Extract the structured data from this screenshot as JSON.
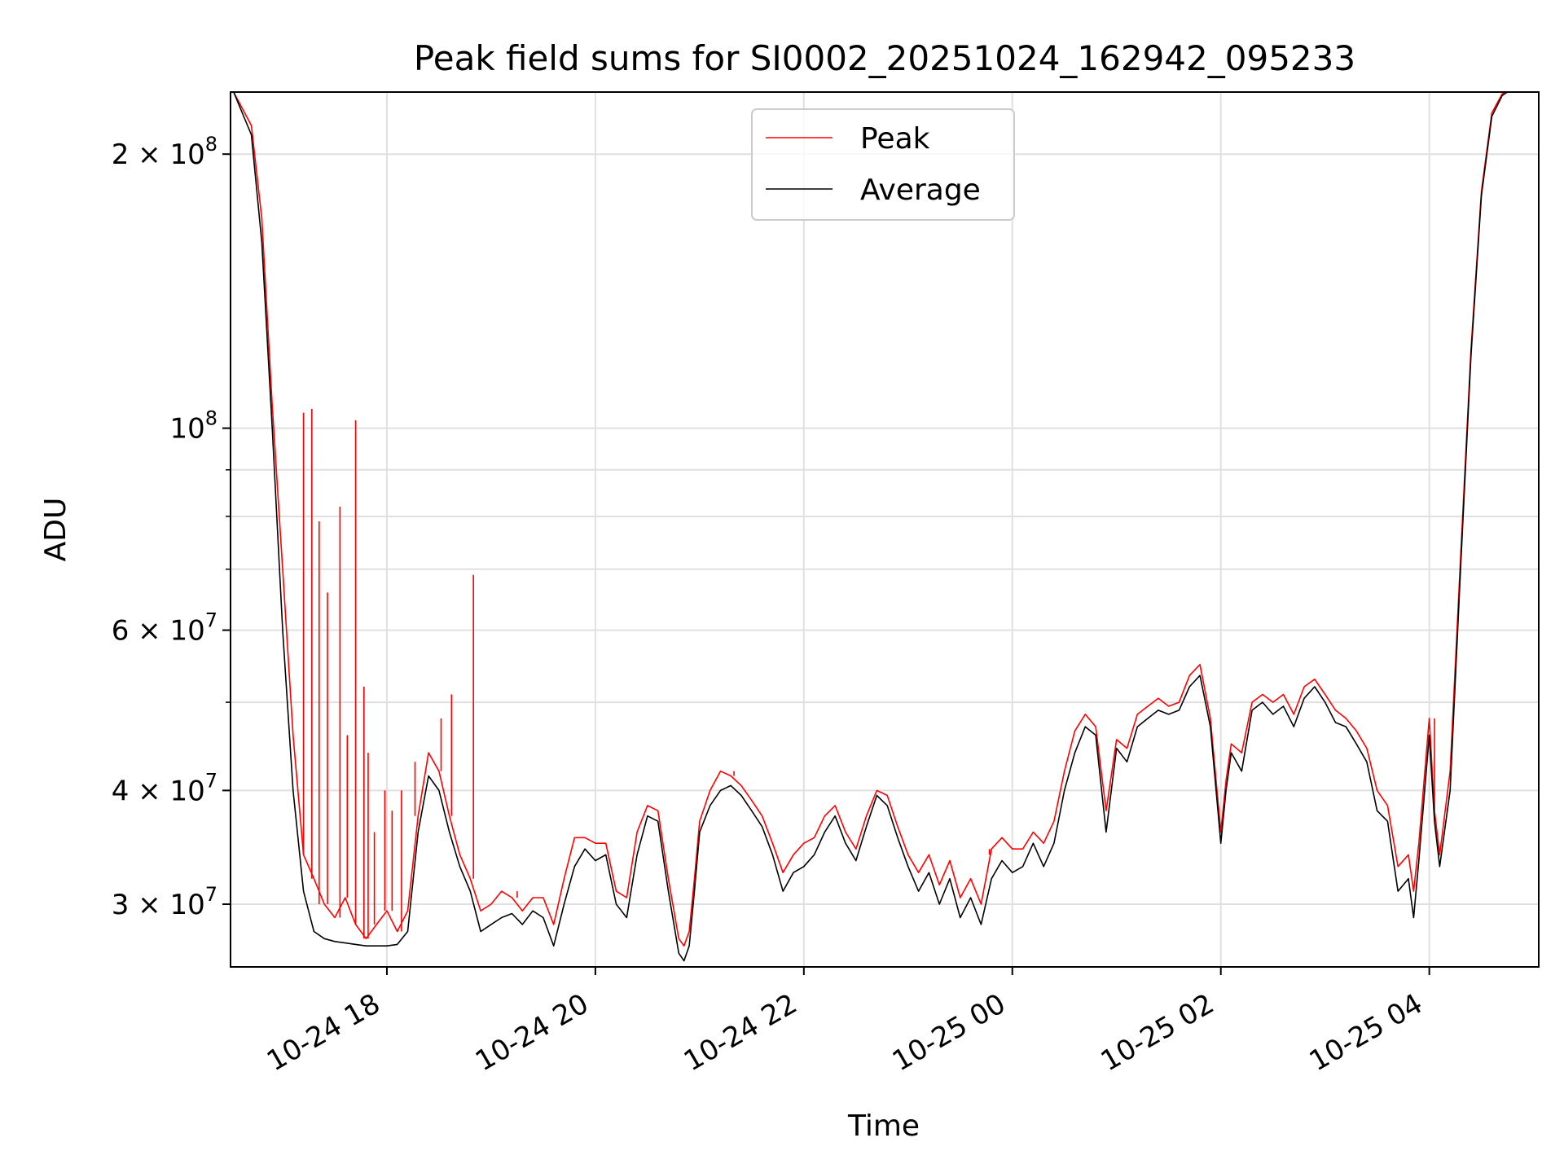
{
  "chart_data": {
    "type": "line",
    "title": "Peak field sums for SI0002_20251024_162942_095233",
    "xlabel": "Time",
    "ylabel": "ADU",
    "yscale": "log",
    "ylim": [
      25600000,
      234000000
    ],
    "xlim_hours": [
      16.5,
      29.05
    ],
    "x_unit": "hours since 2025-10-24 00:00",
    "grid": true,
    "legend_location": "upper center",
    "x_ticks": [
      {
        "value": 18,
        "label": "10-24 18"
      },
      {
        "value": 20,
        "label": "10-24 20"
      },
      {
        "value": 22,
        "label": "10-24 22"
      },
      {
        "value": 24,
        "label": "10-25 00"
      },
      {
        "value": 26,
        "label": "10-25 02"
      },
      {
        "value": 28,
        "label": "10-25 04"
      }
    ],
    "y_major_ticks": [
      {
        "value": 30000000,
        "mantissa": "3",
        "exponent": "7"
      },
      {
        "value": 40000000,
        "mantissa": "4",
        "exponent": "7"
      },
      {
        "value": 60000000,
        "mantissa": "6",
        "exponent": "7"
      },
      {
        "value": 100000000,
        "mantissa": "",
        "exponent": "8"
      },
      {
        "value": 200000000,
        "mantissa": "2",
        "exponent": "8"
      }
    ],
    "y_minor_ticks": [
      50000000,
      70000000,
      80000000,
      90000000
    ],
    "times_symbol": "×",
    "base_label": "10",
    "series": [
      {
        "name": "Average",
        "color": "#000000",
        "x": [
          16.53,
          16.7,
          16.8,
          16.9,
          17.0,
          17.1,
          17.2,
          17.3,
          17.4,
          17.5,
          17.6,
          17.7,
          17.8,
          17.9,
          18.0,
          18.1,
          18.2,
          18.3,
          18.4,
          18.5,
          18.6,
          18.7,
          18.8,
          18.9,
          19.0,
          19.1,
          19.2,
          19.3,
          19.4,
          19.5,
          19.6,
          19.7,
          19.8,
          19.9,
          20.0,
          20.1,
          20.2,
          20.3,
          20.4,
          20.5,
          20.6,
          20.7,
          20.8,
          20.85,
          20.9,
          20.95,
          21.0,
          21.1,
          21.2,
          21.3,
          21.4,
          21.5,
          21.6,
          21.7,
          21.8,
          21.9,
          22.0,
          22.1,
          22.2,
          22.3,
          22.4,
          22.5,
          22.6,
          22.7,
          22.8,
          22.9,
          23.0,
          23.1,
          23.2,
          23.3,
          23.4,
          23.5,
          23.6,
          23.7,
          23.8,
          23.9,
          24.0,
          24.1,
          24.2,
          24.3,
          24.4,
          24.5,
          24.6,
          24.7,
          24.8,
          24.9,
          25.0,
          25.1,
          25.2,
          25.3,
          25.4,
          25.5,
          25.6,
          25.7,
          25.8,
          25.9,
          26.0,
          26.05,
          26.1,
          26.2,
          26.3,
          26.4,
          26.5,
          26.6,
          26.7,
          26.8,
          26.9,
          27.0,
          27.1,
          27.2,
          27.3,
          27.4,
          27.5,
          27.6,
          27.7,
          27.8,
          27.85,
          27.9,
          28.0,
          28.05,
          28.1,
          28.2,
          28.3,
          28.4,
          28.5,
          28.6,
          28.7,
          28.75,
          28.8,
          28.9,
          29.0,
          29.05
        ],
        "y": [
          234000000,
          210000000,
          160000000,
          100000000,
          60000000,
          40000000,
          31000000,
          28000000,
          27500000,
          27300000,
          27200000,
          27100000,
          27000000,
          27000000,
          27000000,
          27100000,
          28000000,
          36000000,
          41500000,
          40000000,
          36000000,
          33000000,
          31000000,
          28000000,
          28500000,
          29000000,
          29300000,
          28500000,
          29500000,
          29000000,
          27000000,
          30000000,
          33000000,
          34500000,
          33500000,
          34000000,
          30000000,
          29000000,
          34000000,
          37500000,
          37000000,
          31000000,
          26500000,
          26000000,
          27000000,
          31000000,
          36000000,
          38500000,
          40000000,
          40500000,
          39500000,
          38000000,
          36500000,
          34000000,
          31000000,
          32500000,
          33000000,
          34000000,
          36000000,
          37500000,
          35000000,
          33500000,
          36500000,
          39500000,
          38500000,
          35500000,
          33000000,
          31000000,
          32500000,
          30000000,
          32000000,
          29000000,
          30500000,
          28500000,
          32000000,
          33500000,
          32500000,
          33000000,
          35000000,
          33000000,
          35000000,
          40000000,
          44000000,
          47000000,
          46000000,
          36000000,
          44500000,
          43000000,
          47000000,
          48000000,
          49000000,
          48500000,
          49000000,
          52000000,
          53500000,
          47000000,
          35000000,
          40000000,
          44000000,
          42000000,
          49000000,
          50000000,
          48500000,
          49500000,
          47000000,
          50500000,
          52000000,
          50000000,
          47500000,
          47000000,
          45000000,
          43000000,
          38000000,
          37000000,
          31000000,
          32000000,
          29000000,
          33500000,
          46000000,
          37000000,
          33000000,
          40000000,
          70000000,
          120000000,
          180000000,
          220000000,
          232000000,
          234000000,
          234000000,
          234000000,
          234000000,
          234000000
        ]
      },
      {
        "name": "Peak",
        "color": "#ff0000",
        "x": [
          16.53,
          16.7,
          16.8,
          16.9,
          17.0,
          17.1,
          17.2,
          17.3,
          17.4,
          17.5,
          17.6,
          17.7,
          17.8,
          17.9,
          18.0,
          18.1,
          18.2,
          18.3,
          18.4,
          18.5,
          18.6,
          18.7,
          18.8,
          18.9,
          19.0,
          19.1,
          19.2,
          19.3,
          19.4,
          19.5,
          19.6,
          19.7,
          19.8,
          19.9,
          20.0,
          20.1,
          20.2,
          20.3,
          20.4,
          20.5,
          20.6,
          20.7,
          20.8,
          20.85,
          20.9,
          20.95,
          21.0,
          21.1,
          21.2,
          21.3,
          21.4,
          21.5,
          21.6,
          21.7,
          21.8,
          21.9,
          22.0,
          22.1,
          22.2,
          22.3,
          22.4,
          22.5,
          22.6,
          22.7,
          22.8,
          22.9,
          23.0,
          23.1,
          23.2,
          23.3,
          23.4,
          23.5,
          23.6,
          23.7,
          23.8,
          23.9,
          24.0,
          24.1,
          24.2,
          24.3,
          24.4,
          24.5,
          24.6,
          24.7,
          24.8,
          24.9,
          25.0,
          25.1,
          25.2,
          25.3,
          25.4,
          25.5,
          25.6,
          25.7,
          25.8,
          25.9,
          26.0,
          26.05,
          26.1,
          26.2,
          26.3,
          26.4,
          26.5,
          26.6,
          26.7,
          26.8,
          26.9,
          27.0,
          27.1,
          27.2,
          27.3,
          27.4,
          27.5,
          27.6,
          27.7,
          27.8,
          27.85,
          27.9,
          28.0,
          28.05,
          28.1,
          28.2,
          28.3,
          28.4,
          28.5,
          28.6,
          28.7,
          28.75,
          28.8,
          28.9,
          29.0,
          29.05
        ],
        "y": [
          234000000,
          215000000,
          170000000,
          106000000,
          70000000,
          46000000,
          34000000,
          32000000,
          30000000,
          29000000,
          30500000,
          28500000,
          27500000,
          28500000,
          29500000,
          28000000,
          29500000,
          37500000,
          44000000,
          42000000,
          37500000,
          34000000,
          32000000,
          29500000,
          30000000,
          31000000,
          30500000,
          29500000,
          30500000,
          30500000,
          28500000,
          32000000,
          35500000,
          35500000,
          35000000,
          35000000,
          31000000,
          30500000,
          36000000,
          38500000,
          38000000,
          32000000,
          27500000,
          27000000,
          28000000,
          32000000,
          37000000,
          40000000,
          42000000,
          41500000,
          40500000,
          39000000,
          37500000,
          35000000,
          32500000,
          34000000,
          35000000,
          35500000,
          37500000,
          38500000,
          36000000,
          34500000,
          37500000,
          40000000,
          39500000,
          36500000,
          34000000,
          32500000,
          34000000,
          31500000,
          33500000,
          30500000,
          32000000,
          30000000,
          34500000,
          35500000,
          34500000,
          34500000,
          36000000,
          35000000,
          37000000,
          42000000,
          46500000,
          48500000,
          47000000,
          38000000,
          45500000,
          44500000,
          48500000,
          49500000,
          50500000,
          49500000,
          50000000,
          53500000,
          55000000,
          48000000,
          36000000,
          41000000,
          45000000,
          44000000,
          50000000,
          51000000,
          50000000,
          51000000,
          48500000,
          52000000,
          53000000,
          51000000,
          49000000,
          48000000,
          46500000,
          44500000,
          40000000,
          38500000,
          33000000,
          34000000,
          31000000,
          35000000,
          48000000,
          38000000,
          34000000,
          42000000,
          72000000,
          122000000,
          182000000,
          222000000,
          233000000,
          234000000,
          234000000,
          234000000,
          234000000,
          234000000
        ],
        "spikes": [
          {
            "x": 17.2,
            "y": 104000000
          },
          {
            "x": 17.28,
            "y": 105000000
          },
          {
            "x": 17.35,
            "y": 79000000
          },
          {
            "x": 17.43,
            "y": 66000000
          },
          {
            "x": 17.55,
            "y": 82000000
          },
          {
            "x": 17.62,
            "y": 46000000
          },
          {
            "x": 17.7,
            "y": 102000000
          },
          {
            "x": 17.78,
            "y": 52000000
          },
          {
            "x": 17.82,
            "y": 44000000
          },
          {
            "x": 17.88,
            "y": 36000000
          },
          {
            "x": 17.98,
            "y": 40000000
          },
          {
            "x": 18.05,
            "y": 38000000
          },
          {
            "x": 18.14,
            "y": 40000000
          },
          {
            "x": 18.27,
            "y": 43000000
          },
          {
            "x": 18.52,
            "y": 48000000
          },
          {
            "x": 18.62,
            "y": 51000000
          },
          {
            "x": 18.83,
            "y": 69000000
          },
          {
            "x": 19.25,
            "y": 31000000
          },
          {
            "x": 21.33,
            "y": 42000000
          },
          {
            "x": 23.78,
            "y": 34000000
          },
          {
            "x": 28.05,
            "y": 48000000
          }
        ]
      }
    ]
  }
}
